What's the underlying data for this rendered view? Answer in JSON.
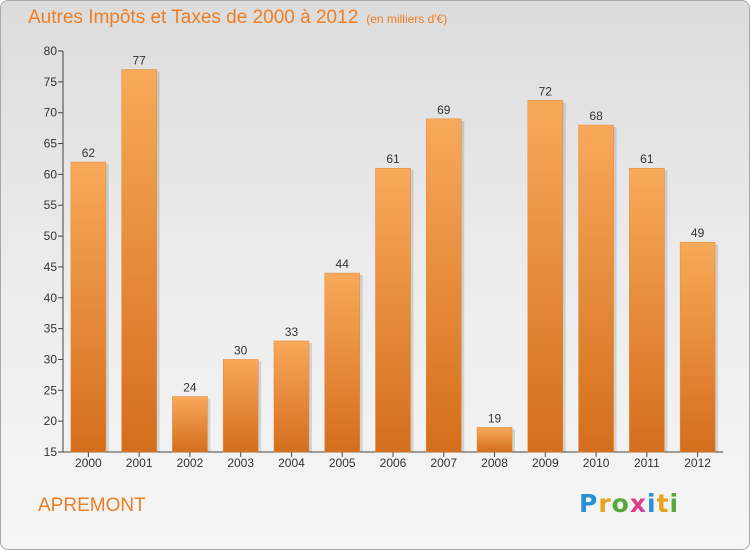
{
  "header": {
    "title": "Autres Impôts et Taxes de 2000 à 2012",
    "unit": "(en milliers d'€)"
  },
  "commune": "APREMONT",
  "logo": {
    "letters": [
      {
        "char": "P",
        "color": "#2a8fd6"
      },
      {
        "char": "r",
        "color": "#e8a21c"
      },
      {
        "char": "o",
        "color": "#56a83c"
      },
      {
        "char": "x",
        "color": "#e03c8c"
      },
      {
        "char": "i",
        "color": "#2a8fd6"
      },
      {
        "char": "t",
        "color": "#e8a21c"
      },
      {
        "char": "i",
        "color": "#56a83c"
      }
    ]
  },
  "colors": {
    "bar_light": "#f8a95a",
    "bar_dark": "#d46e1d",
    "accent": "#ef7d22"
  },
  "chart_data": {
    "type": "bar",
    "categories": [
      "2000",
      "2001",
      "2002",
      "2003",
      "2004",
      "2005",
      "2006",
      "2007",
      "2008",
      "2009",
      "2010",
      "2011",
      "2012"
    ],
    "values": [
      62,
      77,
      24,
      30,
      33,
      44,
      61,
      69,
      19,
      72,
      68,
      61,
      49
    ],
    "ylim": [
      15,
      80
    ],
    "yticks": [
      15,
      20,
      25,
      30,
      35,
      40,
      45,
      50,
      55,
      60,
      65,
      70,
      75,
      80
    ],
    "grid": false
  }
}
